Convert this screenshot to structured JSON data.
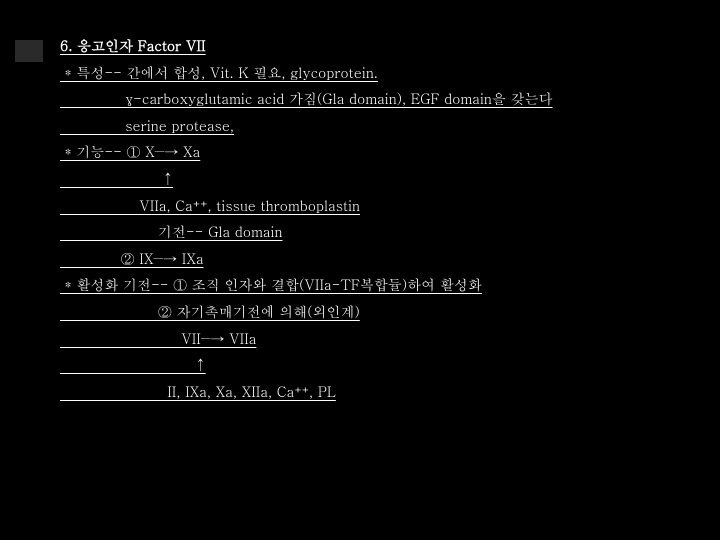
{
  "slide": {
    "background_color": "#000000",
    "text_color": "#ffffff",
    "accent_color": "#2a2a2a",
    "font_size": 14,
    "line_height": 1.9,
    "title": "6. 응고인자 Factor VII",
    "lines": {
      "l1": " * 특성-- 간에서 합성, Vit. K 필요, glycoprotein.",
      "l2": "              γ-carboxyglutamic acid 가짐(Gla domain), EGF domain을 갖는다",
      "l3": "              serine protease,",
      "l4": " * 기능-- ① X―→ Xa",
      "l5": "                      ↑",
      "l6": "                 VIIa, Ca⁺⁺, tissue thromboplastin",
      "l7": "                     기전-- Gla domain",
      "l8": "             ② IX―→ IXa",
      "l9": " * 활성화 기전-- ① 조직 인자와 결합(VIIa-TF복합듈)하여 활성화",
      "l10": "                     ② 자기촉매기전에 의해(외인계)",
      "l11": "                          VII―→ VIIa",
      "l12": "                             ↑",
      "l13": "                       II, IXa, Xa, XIIa, Ca⁺⁺, PL"
    }
  }
}
